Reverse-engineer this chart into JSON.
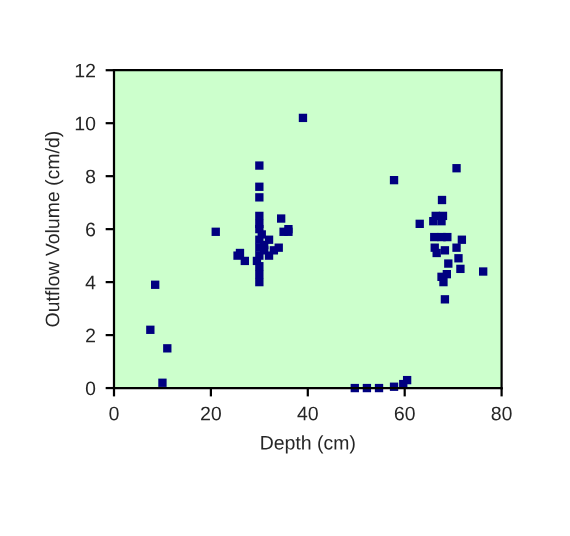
{
  "chart_data": {
    "type": "scatter",
    "xlabel": "Depth (cm)",
    "ylabel": "Outflow Volume (cm/d)",
    "xlim": [
      0,
      80
    ],
    "ylim": [
      0,
      12
    ],
    "xticks": [
      0,
      20,
      40,
      60,
      80
    ],
    "yticks": [
      0,
      2,
      4,
      6,
      8,
      10,
      12
    ],
    "grid": false,
    "marker": "square",
    "legend": false,
    "series": [
      {
        "color": "#000080",
        "x": [
          7.5,
          8.5,
          10,
          11,
          21,
          25.5,
          26,
          27,
          29.5,
          30,
          30,
          30,
          30,
          30,
          30,
          30,
          30,
          30,
          30,
          30,
          30,
          30.5,
          31,
          31,
          32,
          32,
          33,
          34,
          34.5,
          35,
          36,
          36,
          39,
          57.8,
          70.7,
          67.7,
          63.1,
          66.4,
          67.9,
          65.9,
          67.6,
          66.1,
          67.6,
          68.8,
          71.8,
          70.7,
          66.2,
          68.3,
          66.6,
          71.1,
          71.5,
          76.2,
          69.0,
          68.7,
          67.6,
          68.0,
          68.3,
          49.7,
          52.2,
          54.7,
          57.8,
          59.7,
          60.5
        ],
        "values": [
          2.2,
          3.9,
          0.2,
          1.5,
          5.9,
          5.0,
          5.1,
          4.8,
          4.8,
          8.4,
          7.6,
          7.2,
          6.5,
          6.2,
          6.0,
          5.6,
          5.3,
          5.0,
          4.6,
          4.3,
          4.0,
          5.8,
          5.4,
          5.2,
          5.6,
          5.0,
          5.2,
          5.3,
          6.4,
          5.9,
          6.0,
          5.9,
          10.2,
          7.85,
          8.3,
          7.1,
          6.2,
          6.5,
          6.5,
          6.3,
          6.3,
          5.7,
          5.7,
          5.7,
          5.6,
          5.3,
          5.3,
          5.2,
          5.1,
          4.9,
          4.5,
          4.4,
          4.7,
          4.3,
          4.2,
          4.0,
          3.35,
          0,
          0,
          0,
          0.05,
          0.15,
          0.3
        ]
      }
    ]
  }
}
